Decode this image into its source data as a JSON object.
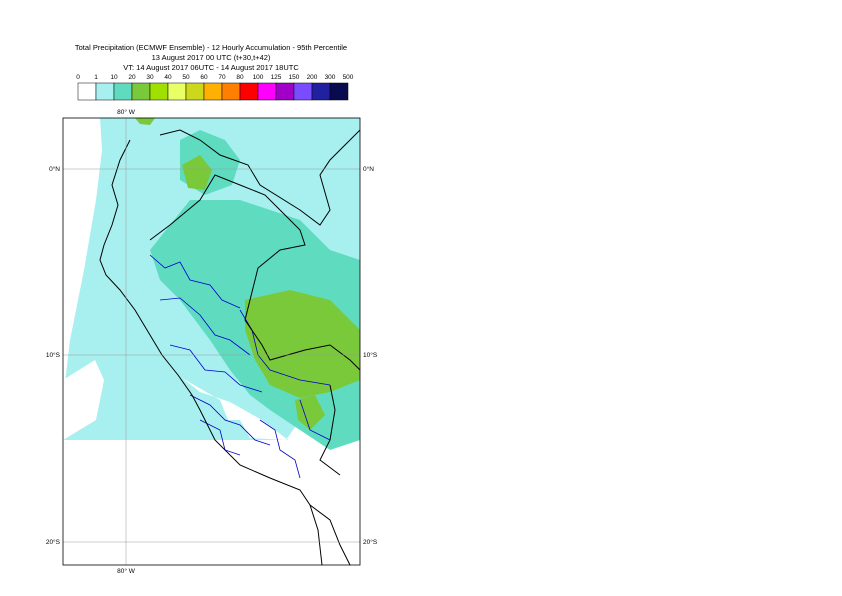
{
  "title": {
    "line1": "Total Precipitation (ECMWF Ensemble) - 12 Hourly Accumulation - 95th Percentile",
    "line2": "13 August 2017 00 UTC (t+30,t+42)",
    "line3": "VT: 14 August 2017 06UTC - 14 August 2017 18UTC"
  },
  "legend": {
    "thresholds": [
      "0",
      "1",
      "10",
      "20",
      "30",
      "40",
      "50",
      "60",
      "70",
      "80",
      "100",
      "125",
      "150",
      "200",
      "300",
      "500"
    ],
    "colors": [
      "#ffffff",
      "#a8f0f0",
      "#5fdcc0",
      "#7ac93b",
      "#9fe000",
      "#e8ff66",
      "#ccd81a",
      "#ffb000",
      "#ff7f00",
      "#ff0000",
      "#ff00ff",
      "#a000c8",
      "#7a4cff",
      "#2020a0",
      "#0a0a50"
    ]
  },
  "map": {
    "lon_labels": {
      "top": "80° W",
      "bottom": "80° W"
    },
    "lat_labels": [
      "0°N",
      "10°S",
      "20°S"
    ],
    "colors": {
      "land": "#ffffff",
      "light": "#a8f0f0",
      "medium": "#5fdcc0",
      "heavy": "#7ac93b",
      "border_national": "#000000",
      "border_regional": "#0000cc",
      "grid": "#999999"
    }
  }
}
